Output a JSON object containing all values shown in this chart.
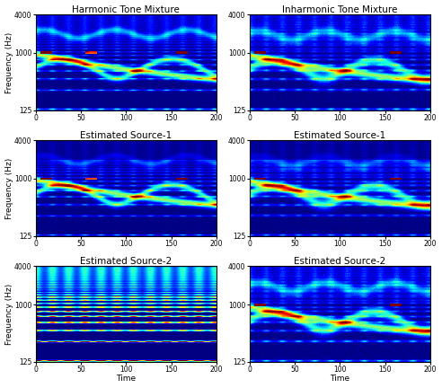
{
  "titles": [
    [
      "Harmonic Tone Mixture",
      "Inharmonic Tone Mixture"
    ],
    [
      "Estimated Source-1",
      "Estimated Source-1"
    ],
    [
      "Estimated Source-2",
      "Estimated Source-2"
    ]
  ],
  "xlabel": "Time",
  "ylabel": "Frequency (Hz)",
  "yticks": [
    125,
    1000,
    4000
  ],
  "xticks": [
    0,
    50,
    100,
    150,
    200
  ],
  "xlim": [
    0,
    200
  ],
  "ymin": 125,
  "ymax": 4000,
  "figsize": [
    4.92,
    4.32
  ],
  "dpi": 100,
  "cmap": "jet",
  "title_fontsize": 7.5,
  "label_fontsize": 6.5,
  "tick_fontsize": 5.5
}
